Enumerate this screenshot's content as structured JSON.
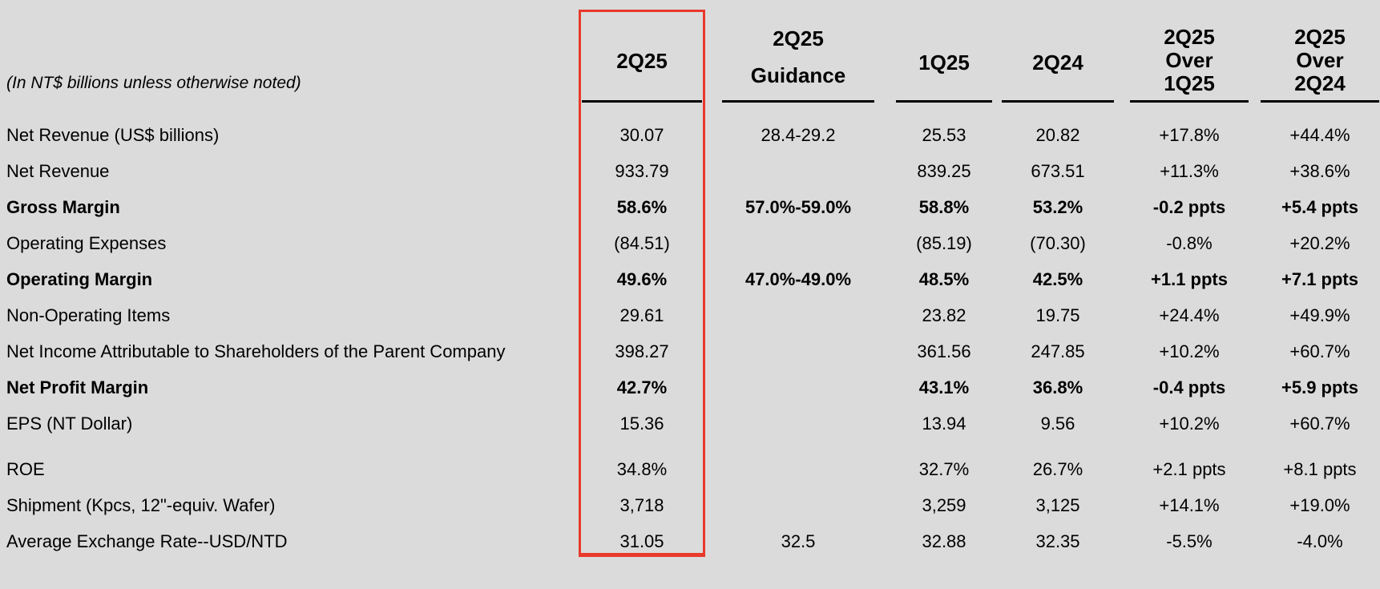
{
  "meta": {
    "note": "(In NT$ billions unless otherwise noted)"
  },
  "header": {
    "q2_25": "2Q25",
    "guidance": [
      "2Q25",
      "Guidance"
    ],
    "q1_25": "1Q25",
    "q2_24": "2Q24",
    "over_q1": [
      "2Q25",
      "Over",
      "1Q25"
    ],
    "over_q2": [
      "2Q25",
      "Over",
      "2Q24"
    ]
  },
  "rows": [
    {
      "label": "Net Revenue (US$ billions)",
      "values": [
        "30.07",
        "28.4-29.2",
        "25.53",
        "20.82",
        "+17.8%",
        "+44.4%"
      ]
    },
    {
      "label": "Net Revenue",
      "values": [
        "933.79",
        "",
        "839.25",
        "673.51",
        "+11.3%",
        "+38.6%"
      ]
    },
    {
      "label": "Gross Margin",
      "values": [
        "58.6%",
        "57.0%-59.0%",
        "58.8%",
        "53.2%",
        "-0.2 ppts",
        "+5.4 ppts"
      ]
    },
    {
      "label": "Operating Expenses",
      "values": [
        "(84.51)",
        "",
        "(85.19)",
        "(70.30)",
        "-0.8%",
        "+20.2%"
      ]
    },
    {
      "label": "Operating Margin",
      "values": [
        "49.6%",
        "47.0%-49.0%",
        "48.5%",
        "42.5%",
        "+1.1 ppts",
        "+7.1 ppts"
      ]
    },
    {
      "label": "Non-Operating Items",
      "values": [
        "29.61",
        "",
        "23.82",
        "19.75",
        "+24.4%",
        "+49.9%"
      ]
    },
    {
      "label": "Net Income Attributable to Shareholders of the Parent Company",
      "values": [
        "398.27",
        "",
        "361.56",
        "247.85",
        "+10.2%",
        "+60.7%"
      ]
    },
    {
      "label": "Net Profit Margin",
      "values": [
        "42.7%",
        "",
        "43.1%",
        "36.8%",
        "-0.4 ppts",
        "+5.9 ppts"
      ]
    },
    {
      "label": "EPS (NT Dollar)",
      "values": [
        "15.36",
        "",
        "13.94",
        "9.56",
        "+10.2%",
        "+60.7%"
      ]
    },
    {
      "label": "ROE",
      "values": [
        "34.8%",
        "",
        "32.7%",
        "26.7%",
        "+2.1 ppts",
        "+8.1 ppts"
      ]
    },
    {
      "label": "Shipment (Kpcs, 12\"-equiv. Wafer)",
      "values": [
        "3,718",
        "",
        "3,259",
        "3,125",
        "+14.1%",
        "+19.0%"
      ]
    },
    {
      "label": "Average Exchange Rate--USD/NTD",
      "values": [
        "31.05",
        "32.5",
        "32.88",
        "32.35",
        "-5.5%",
        "-4.0%"
      ]
    }
  ],
  "colors": {
    "background": "#dbdbdb",
    "text": "#000000",
    "header_rule": "#000000",
    "highlight_border": "#e8392b"
  }
}
